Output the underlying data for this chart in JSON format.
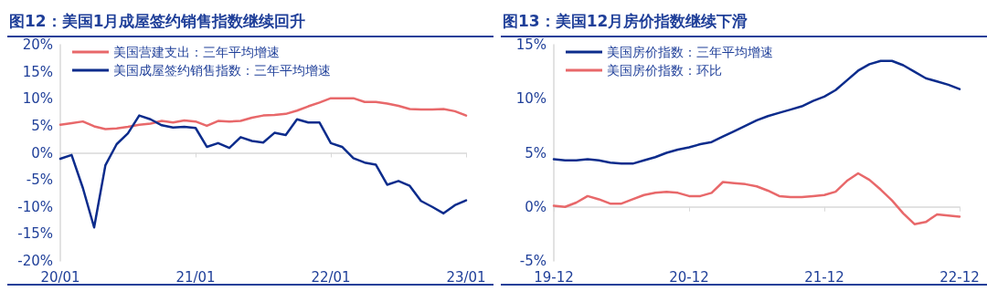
{
  "chart_data": [
    {
      "type": "line",
      "title": "图12：美国1月成屋签约销售指数继续回升",
      "categories": [
        "20/01",
        null,
        null,
        null,
        null,
        null,
        null,
        null,
        null,
        null,
        null,
        null,
        "21/01",
        null,
        null,
        null,
        null,
        null,
        null,
        null,
        null,
        null,
        null,
        null,
        "22/01",
        null,
        null,
        null,
        null,
        null,
        null,
        null,
        null,
        null,
        null,
        null,
        "23/01"
      ],
      "series": [
        {
          "name": "美国营建支出：三年平均增速",
          "color": "#e8686a",
          "values": [
            5.2,
            5.5,
            5.8,
            4.9,
            4.4,
            4.5,
            4.8,
            5.2,
            5.4,
            5.9,
            5.6,
            6.0,
            5.8,
            5.0,
            5.9,
            5.8,
            5.9,
            6.5,
            6.9,
            7.0,
            7.2,
            7.8,
            8.6,
            9.3,
            10.1,
            10.1,
            10.1,
            9.4,
            9.4,
            9.1,
            8.7,
            8.1,
            8.0,
            8.0,
            8.1,
            7.7,
            6.9
          ]
        },
        {
          "name": "美国成屋签约销售指数：三年平均增速",
          "color": "#0c2c8c",
          "values": [
            -1.1,
            -0.4,
            -6.5,
            -13.8,
            -2.3,
            1.6,
            3.6,
            6.9,
            6.2,
            5.1,
            4.7,
            4.8,
            4.6,
            1.1,
            1.8,
            0.9,
            2.9,
            2.2,
            1.9,
            3.7,
            3.3,
            6.2,
            5.6,
            5.6,
            1.8,
            1.1,
            -1.0,
            -1.8,
            -2.2,
            -5.9,
            -5.2,
            -6.1,
            -8.9,
            -10.0,
            -11.2,
            -9.7,
            -8.8
          ]
        }
      ],
      "ylim": [
        -20,
        20
      ],
      "yticks": [
        {
          "value": -20,
          "label": "-20%"
        },
        {
          "value": -15,
          "label": "-15%"
        },
        {
          "value": -10,
          "label": "-10%"
        },
        {
          "value": -5,
          "label": "-5%"
        },
        {
          "value": 0,
          "label": "0%"
        },
        {
          "value": 5,
          "label": "5%"
        },
        {
          "value": 10,
          "label": "10%"
        },
        {
          "value": 15,
          "label": "15%"
        },
        {
          "value": 20,
          "label": "20%"
        }
      ],
      "legend": "top left",
      "marker": "none",
      "line_style": "solid"
    },
    {
      "type": "line",
      "title": "图13：美国12月房价指数继续下滑",
      "categories": [
        "19-12",
        null,
        null,
        null,
        null,
        null,
        null,
        null,
        null,
        null,
        null,
        null,
        "20-12",
        null,
        null,
        null,
        null,
        null,
        null,
        null,
        null,
        null,
        null,
        null,
        "21-12",
        null,
        null,
        null,
        null,
        null,
        null,
        null,
        null,
        null,
        null,
        null,
        "22-12"
      ],
      "series": [
        {
          "name": "美国房价指数：三年平均增速",
          "color": "#0c2c8c",
          "values": [
            4.4,
            4.3,
            4.3,
            4.4,
            4.3,
            4.1,
            4.0,
            4.0,
            4.3,
            4.6,
            5.0,
            5.3,
            5.5,
            5.8,
            6.0,
            6.5,
            7.0,
            7.5,
            8.0,
            8.4,
            8.7,
            9.0,
            9.3,
            9.8,
            10.2,
            10.8,
            11.7,
            12.6,
            13.2,
            13.5,
            13.5,
            13.1,
            12.5,
            11.9,
            11.6,
            11.3,
            10.9
          ]
        },
        {
          "name": "美国房价指数：环比",
          "color": "#e8686a",
          "values": [
            0.1,
            0.0,
            0.4,
            1.0,
            0.7,
            0.3,
            0.3,
            0.7,
            1.1,
            1.3,
            1.4,
            1.3,
            1.0,
            1.0,
            1.3,
            2.3,
            2.2,
            2.1,
            1.9,
            1.5,
            1.0,
            0.9,
            0.9,
            1.0,
            1.1,
            1.4,
            2.4,
            3.1,
            2.5,
            1.6,
            0.6,
            -0.6,
            -1.6,
            -1.4,
            -0.7,
            -0.8,
            -0.9
          ]
        }
      ],
      "ylim": [
        -5,
        15
      ],
      "yticks": [
        {
          "value": -5,
          "label": "-5%"
        },
        {
          "value": 0,
          "label": "0%"
        },
        {
          "value": 5,
          "label": "5%"
        },
        {
          "value": 10,
          "label": "10%"
        },
        {
          "value": 15,
          "label": "15%"
        }
      ],
      "legend": "top left",
      "marker": "none",
      "line_style": "solid"
    }
  ]
}
